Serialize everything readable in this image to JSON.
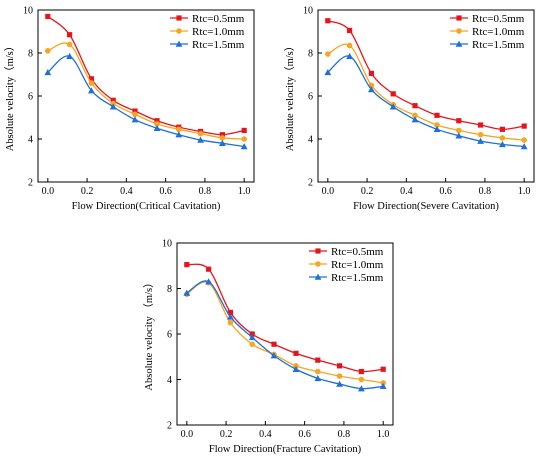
{
  "colors": {
    "series": [
      "#e8141b",
      "#f5a623",
      "#1f6fd8"
    ]
  },
  "chart_data": [
    {
      "type": "line",
      "xlabel": "Flow Direction(Critical Cavitation)",
      "ylabel": "Absolute velocity（m/s）",
      "xlim": [
        -0.05,
        1.05
      ],
      "ylim": [
        2,
        10
      ],
      "xticks": [
        0.0,
        0.2,
        0.4,
        0.6,
        0.8,
        1.0
      ],
      "xtick_labels": [
        "0.0",
        "0.2",
        "0.4",
        "0.6",
        "0.8",
        "1.0"
      ],
      "yticks": [
        2,
        4,
        6,
        8,
        10
      ],
      "ytick_labels": [
        "2",
        "4",
        "6",
        "8",
        "10"
      ],
      "legend_position": "top-right",
      "series": [
        {
          "name": "Rtc=0.5mm",
          "marker": "square",
          "x": [
            0.0,
            0.111,
            0.222,
            0.333,
            0.444,
            0.556,
            0.667,
            0.778,
            0.889,
            1.0
          ],
          "y": [
            9.7,
            8.85,
            6.8,
            5.8,
            5.3,
            4.85,
            4.55,
            4.35,
            4.2,
            4.4
          ]
        },
        {
          "name": "Rtc=1.0mm",
          "marker": "circle",
          "x": [
            0.0,
            0.111,
            0.222,
            0.333,
            0.444,
            0.556,
            0.667,
            0.778,
            0.889,
            1.0
          ],
          "y": [
            8.1,
            8.4,
            6.6,
            5.65,
            5.15,
            4.7,
            4.45,
            4.25,
            4.05,
            4.0
          ]
        },
        {
          "name": "Rtc=1.5mm",
          "marker": "triangle",
          "x": [
            0.0,
            0.111,
            0.222,
            0.333,
            0.444,
            0.556,
            0.667,
            0.778,
            0.889,
            1.0
          ],
          "y": [
            7.1,
            7.85,
            6.25,
            5.5,
            4.9,
            4.5,
            4.2,
            3.95,
            3.8,
            3.65
          ]
        }
      ]
    },
    {
      "type": "line",
      "xlabel": "Flow Direction(Severe Cavitation)",
      "ylabel": "Absolute velocity（m/s）",
      "xlim": [
        -0.05,
        1.05
      ],
      "ylim": [
        2,
        10
      ],
      "xticks": [
        0.0,
        0.2,
        0.4,
        0.6,
        0.8,
        1.0
      ],
      "xtick_labels": [
        "0.0",
        "0.2",
        "0.4",
        "0.6",
        "0.8",
        "1.0"
      ],
      "yticks": [
        2,
        4,
        6,
        8,
        10
      ],
      "ytick_labels": [
        "2",
        "4",
        "6",
        "8",
        "10"
      ],
      "legend_position": "top-right",
      "series": [
        {
          "name": "Rtc=0.5mm",
          "marker": "square",
          "x": [
            0.0,
            0.111,
            0.222,
            0.333,
            0.444,
            0.556,
            0.667,
            0.778,
            0.889,
            1.0
          ],
          "y": [
            9.5,
            9.05,
            7.05,
            6.1,
            5.55,
            5.1,
            4.85,
            4.65,
            4.45,
            4.6
          ]
        },
        {
          "name": "Rtc=1.0mm",
          "marker": "circle",
          "x": [
            0.0,
            0.111,
            0.222,
            0.333,
            0.444,
            0.556,
            0.667,
            0.778,
            0.889,
            1.0
          ],
          "y": [
            7.95,
            8.35,
            6.5,
            5.6,
            5.1,
            4.65,
            4.4,
            4.2,
            4.05,
            3.95
          ]
        },
        {
          "name": "Rtc=1.5mm",
          "marker": "triangle",
          "x": [
            0.0,
            0.111,
            0.222,
            0.333,
            0.444,
            0.556,
            0.667,
            0.778,
            0.889,
            1.0
          ],
          "y": [
            7.1,
            7.85,
            6.3,
            5.5,
            4.9,
            4.45,
            4.15,
            3.9,
            3.75,
            3.65
          ]
        }
      ]
    },
    {
      "type": "line",
      "xlabel": "Flow Direction(Fracture Cavitation)",
      "ylabel": "Absolute velocity （m/s）",
      "xlim": [
        -0.05,
        1.05
      ],
      "ylim": [
        2,
        10
      ],
      "xticks": [
        0.0,
        0.2,
        0.4,
        0.6,
        0.8,
        1.0
      ],
      "xtick_labels": [
        "0.0",
        "0.2",
        "0.4",
        "0.6",
        "0.8",
        "1.0"
      ],
      "yticks": [
        2,
        4,
        6,
        8,
        10
      ],
      "ytick_labels": [
        "2",
        "4",
        "6",
        "8",
        "10"
      ],
      "legend_position": "top-right",
      "series": [
        {
          "name": "Rtc=0.5mm",
          "marker": "square",
          "x": [
            0.0,
            0.111,
            0.222,
            0.333,
            0.444,
            0.556,
            0.667,
            0.778,
            0.889,
            1.0
          ],
          "y": [
            9.05,
            8.85,
            6.95,
            6.0,
            5.55,
            5.15,
            4.85,
            4.6,
            4.35,
            4.45
          ]
        },
        {
          "name": "Rtc=1.0mm",
          "marker": "circle",
          "x": [
            0.0,
            0.111,
            0.222,
            0.333,
            0.444,
            0.556,
            0.667,
            0.778,
            0.889,
            1.0
          ],
          "y": [
            7.75,
            8.25,
            6.5,
            5.55,
            5.1,
            4.6,
            4.35,
            4.15,
            4.0,
            3.85
          ]
        },
        {
          "name": "Rtc=1.5mm",
          "marker": "triangle",
          "x": [
            0.0,
            0.111,
            0.222,
            0.333,
            0.444,
            0.556,
            0.667,
            0.778,
            0.889,
            1.0
          ],
          "y": [
            7.8,
            8.3,
            6.75,
            5.85,
            5.05,
            4.45,
            4.05,
            3.8,
            3.6,
            3.7
          ]
        }
      ]
    }
  ]
}
